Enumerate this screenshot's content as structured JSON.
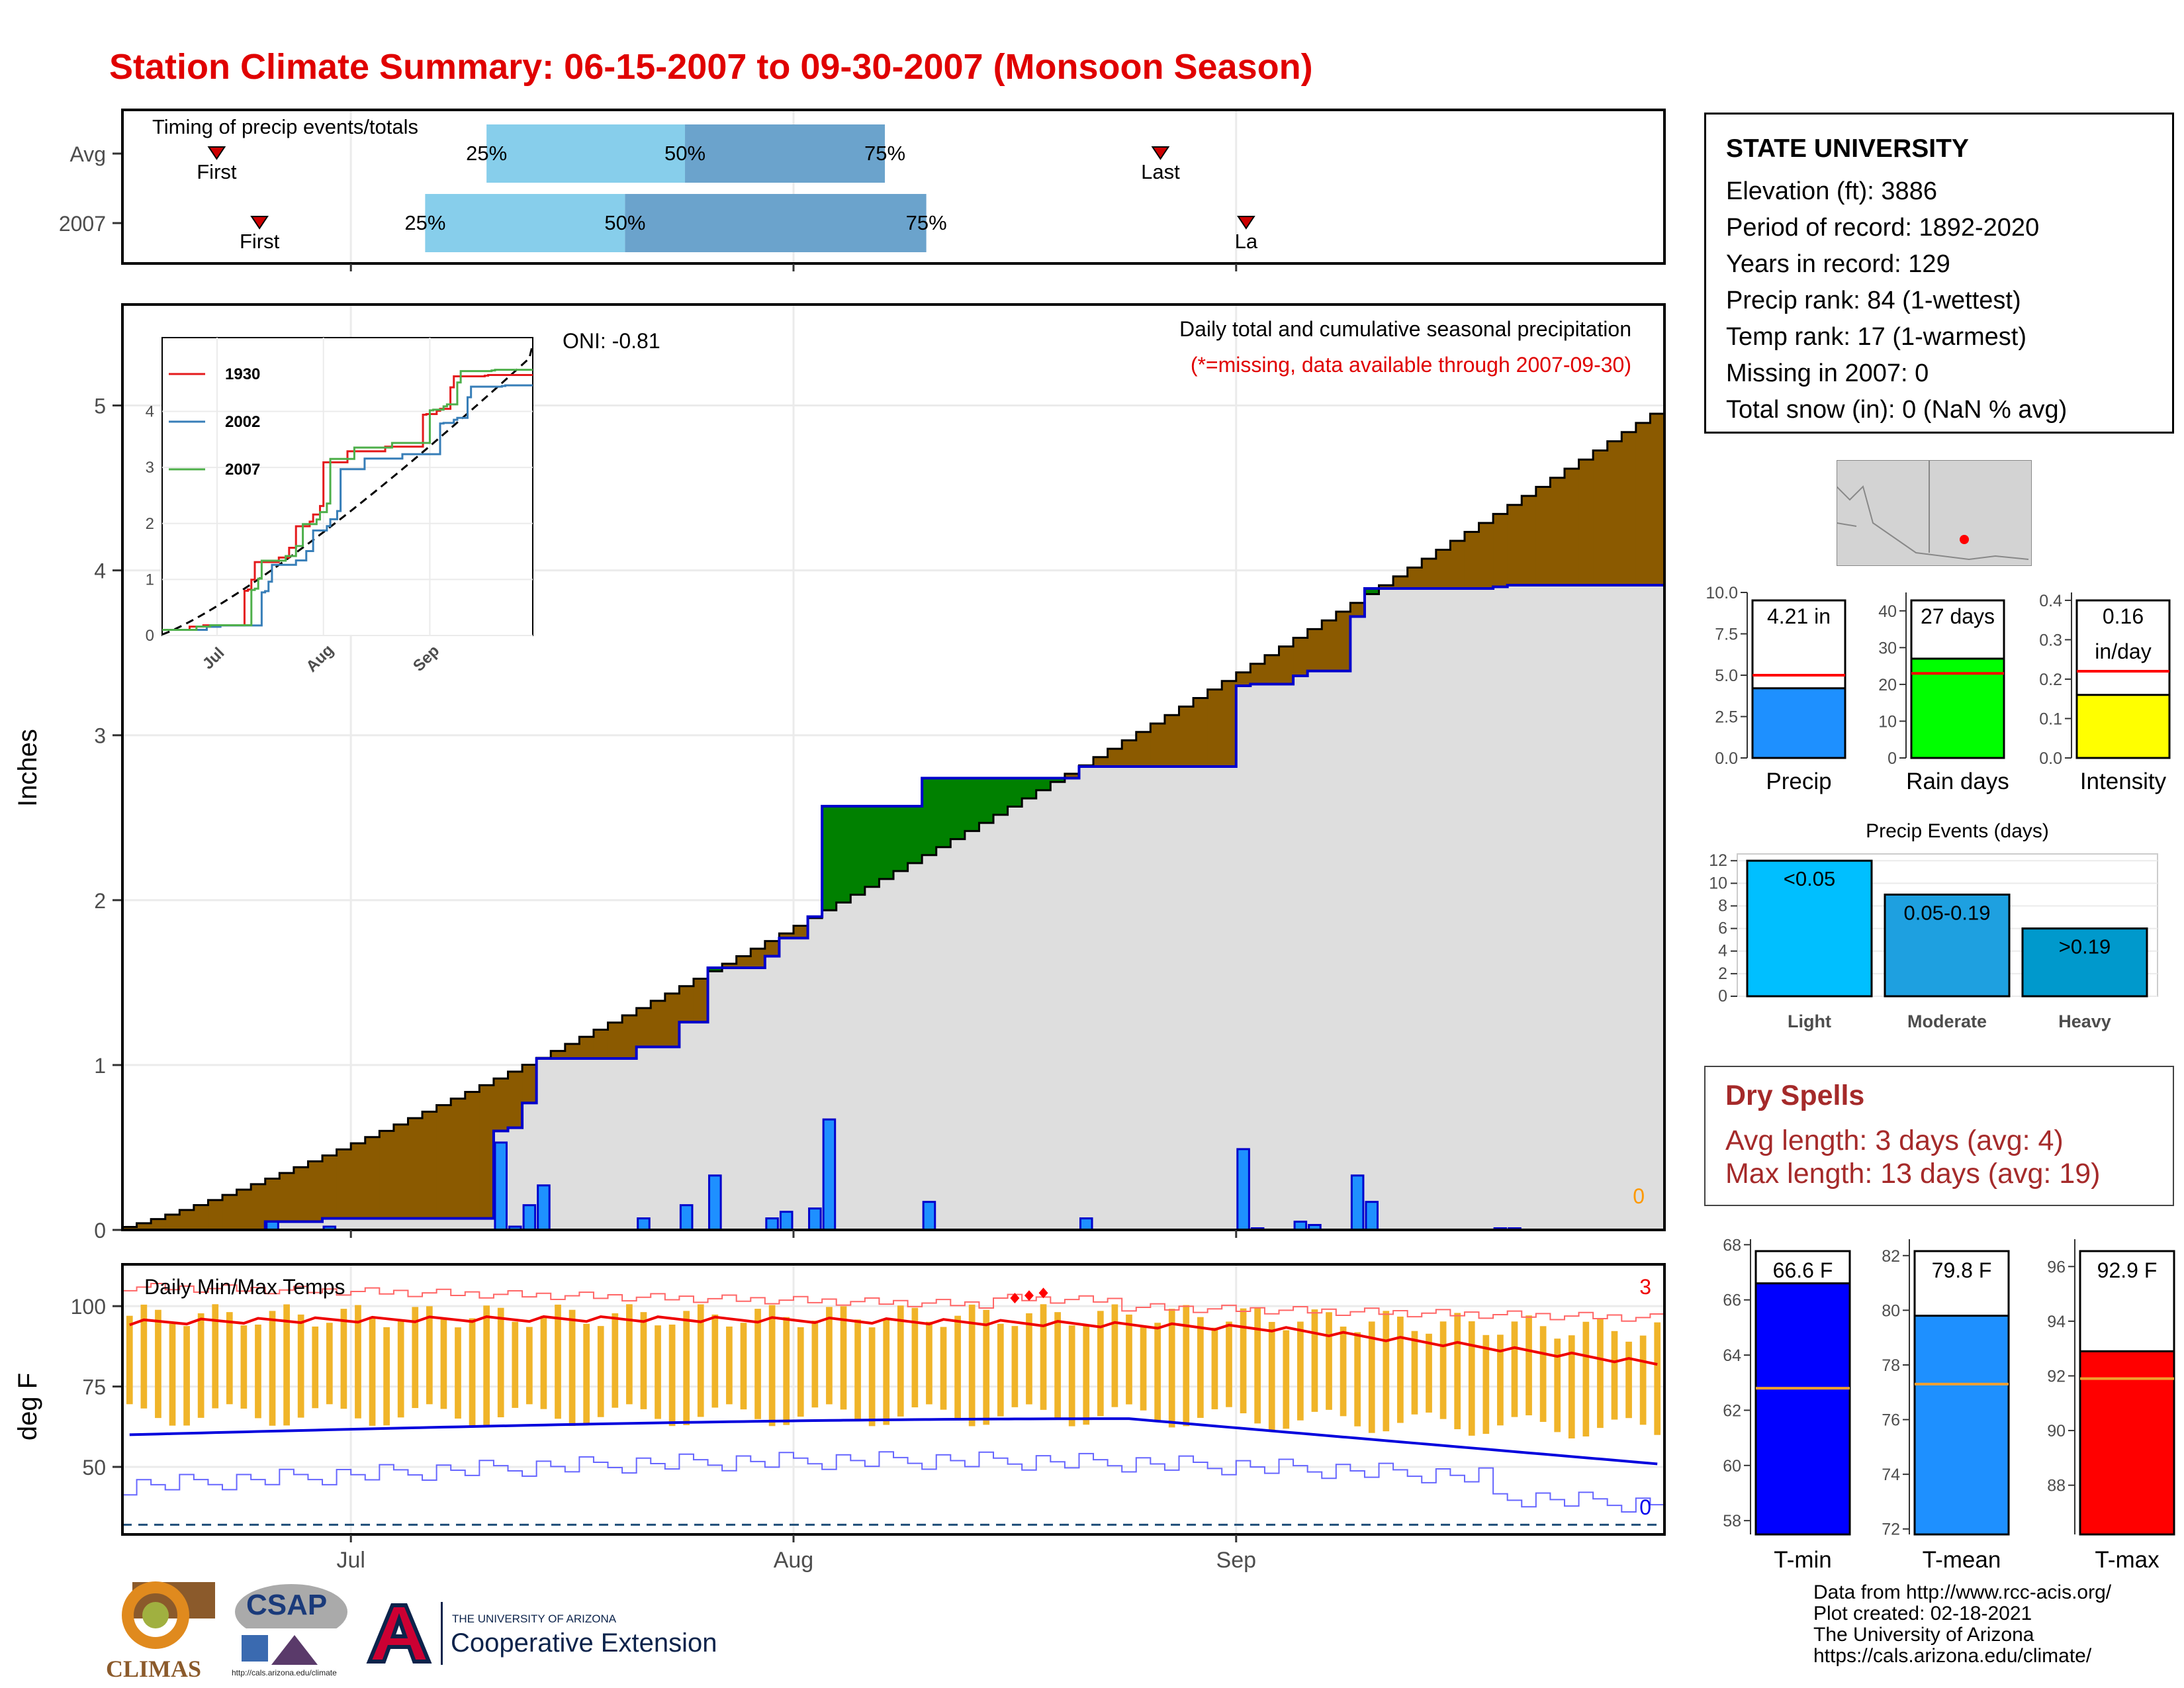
{
  "title": "Station Climate Summary: 06-15-2007 to 09-30-2007 (Monsoon Season)",
  "timing": {
    "caption": "Timing of precip events/totals",
    "rows": [
      {
        "label": "Avg",
        "first": "First",
        "last": "Last",
        "q25": "25%",
        "q50": "50%",
        "q75": "75%"
      },
      {
        "label": "2007",
        "first": "First",
        "last": "La",
        "q25": "25%",
        "q50": "50%",
        "q75": "75%"
      }
    ]
  },
  "precip_panel": {
    "title": "Daily total and cumulative seasonal precipitation",
    "subtitle": "(*=missing, data available through 2007-09-30)",
    "oni": "ONI: -0.81",
    "ylabel": "Inches",
    "missing_count": "0",
    "y_ticks": [
      "0",
      "1",
      "2",
      "3",
      "4",
      "5"
    ],
    "x_ticks": [
      "Jul",
      "Aug",
      "Sep"
    ]
  },
  "inset": {
    "series": [
      {
        "name": "1930",
        "color": "#e41a1c"
      },
      {
        "name": "2002",
        "color": "#377eb8"
      },
      {
        "name": "2007",
        "color": "#4daf4a"
      }
    ],
    "y_ticks": [
      "0",
      "1",
      "2",
      "3",
      "4"
    ],
    "x_ticks": [
      "Jul",
      "Aug",
      "Sep"
    ]
  },
  "temp_panel": {
    "title": "Daily Min/Max Temps",
    "ylabel": "deg F",
    "y_ticks": [
      "50",
      "75",
      "100"
    ],
    "x_ticks": [
      "Jul",
      "Aug",
      "Sep"
    ],
    "record_high_count": "3",
    "record_low_count": "0"
  },
  "station": {
    "name": "STATE UNIVERSITY",
    "lines": [
      "Elevation (ft): 3886",
      "Period of record: 1892-2020",
      "Years in record: 129",
      "Precip rank: 84 (1-wettest)",
      "Temp rank: 17 (1-warmest)",
      "Missing in 2007: 0",
      "Total snow (in): 0 (NaN % avg)"
    ]
  },
  "summary_bars": [
    {
      "label": "Precip",
      "value_text": "4.21 in",
      "value": 4.21,
      "avg": 5.0,
      "ymax": 10,
      "ticks": [
        "0.0",
        "2.5",
        "5.0",
        "7.5",
        "10.0"
      ],
      "color": "#1e90ff"
    },
    {
      "label": "Rain days",
      "value_text": "27 days",
      "value": 27,
      "avg": 23,
      "ymax": 45,
      "ticks": [
        "0",
        "10",
        "20",
        "30",
        "40"
      ],
      "color": "#00ff00"
    },
    {
      "label": "Intensity",
      "value_text": "0.16",
      "value_text2": "in/day",
      "value": 0.16,
      "avg": 0.22,
      "ymax": 0.42,
      "ticks": [
        "0.0",
        "0.1",
        "0.2",
        "0.3",
        "0.4"
      ],
      "color": "#ffff00"
    }
  ],
  "precip_events": {
    "title": "Precip Events (days)",
    "y_ticks": [
      "0",
      "2",
      "4",
      "6",
      "8",
      "10",
      "12"
    ],
    "bars": [
      {
        "label": "Light",
        "range": "<0.05",
        "value": 12,
        "color": "#00bfff"
      },
      {
        "label": "Moderate",
        "range": "0.05-0.19",
        "value": 9,
        "color": "#1ea0e0"
      },
      {
        "label": "Heavy",
        "range": ">0.19",
        "value": 6,
        "color": "#0099cc"
      }
    ]
  },
  "dry_spells": {
    "title": "Dry Spells",
    "avg_line": "Avg length: 3 days (avg: 4)",
    "max_line": "Max length: 13 days (avg: 19)"
  },
  "temp_bars": [
    {
      "label": "T-min",
      "value_text": "66.6 F",
      "value": 66.6,
      "avg": 62.8,
      "ymin": 57.5,
      "ymax": 68.2,
      "ticks": [
        "58",
        "60",
        "62",
        "64",
        "66",
        "68"
      ],
      "color": "#0000ff"
    },
    {
      "label": "T-mean",
      "value_text": "79.8 F",
      "value": 79.8,
      "avg": 77.3,
      "ymin": 71.8,
      "ymax": 82.6,
      "ticks": [
        "72",
        "74",
        "76",
        "78",
        "80",
        "82"
      ],
      "color": "#1e90ff"
    },
    {
      "label": "T-max",
      "value_text": "92.9 F",
      "value": 92.9,
      "avg": 91.9,
      "ymin": 86.2,
      "ymax": 97.0,
      "ticks": [
        "88",
        "90",
        "92",
        "94",
        "96"
      ],
      "color": "#ff0000"
    }
  ],
  "credits": [
    "Data from http://www.rcc-acis.org/",
    "Plot created: 02-18-2021",
    "The University of Arizona",
    "https://cals.arizona.edu/climate/"
  ],
  "logos": {
    "climas": "CLIMAS",
    "csap": "CSAP",
    "csap_url": "http://cals.arizona.edu/climate",
    "ua_small": "THE UNIVERSITY OF ARIZONA",
    "ua_big": "Cooperative Extension"
  },
  "chart_data": {
    "type": "area",
    "x_start": "2007-06-15",
    "x_end": "2007-09-30",
    "ylim": [
      0,
      5.5
    ],
    "daily_precip": [
      {
        "date": "2007-06-25",
        "value": 0.05
      },
      {
        "date": "2007-06-29",
        "value": 0.02
      },
      {
        "date": "2007-07-11",
        "value": 0.53
      },
      {
        "date": "2007-07-12",
        "value": 0.02
      },
      {
        "date": "2007-07-13",
        "value": 0.15
      },
      {
        "date": "2007-07-14",
        "value": 0.27
      },
      {
        "date": "2007-07-21",
        "value": 0.07
      },
      {
        "date": "2007-07-24",
        "value": 0.15
      },
      {
        "date": "2007-07-26",
        "value": 0.33
      },
      {
        "date": "2007-07-30",
        "value": 0.07
      },
      {
        "date": "2007-07-31",
        "value": 0.11
      },
      {
        "date": "2007-08-02",
        "value": 0.13
      },
      {
        "date": "2007-08-03",
        "value": 0.67
      },
      {
        "date": "2007-08-10",
        "value": 0.17
      },
      {
        "date": "2007-08-21",
        "value": 0.07
      },
      {
        "date": "2007-09-01",
        "value": 0.49
      },
      {
        "date": "2007-09-02",
        "value": 0.01
      },
      {
        "date": "2007-09-05",
        "value": 0.05
      },
      {
        "date": "2007-09-06",
        "value": 0.03
      },
      {
        "date": "2007-09-09",
        "value": 0.33
      },
      {
        "date": "2007-09-10",
        "value": 0.17
      },
      {
        "date": "2007-09-19",
        "value": 0.01
      },
      {
        "date": "2007-09-20",
        "value": 0.01
      }
    ],
    "avg_cumulative_end": 4.95,
    "season_total": 4.21,
    "inset_ylim": [
      0,
      5.2
    ]
  }
}
